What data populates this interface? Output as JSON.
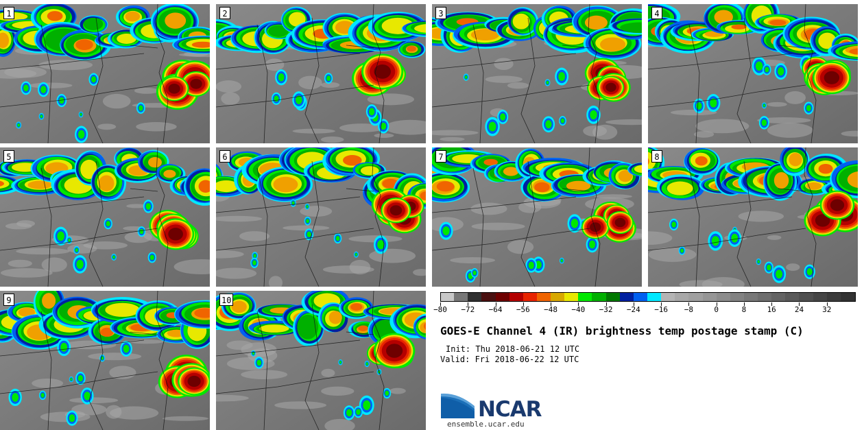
{
  "panels": [
    {
      "label": "1"
    },
    {
      "label": "2"
    },
    {
      "label": "3"
    },
    {
      "label": "4"
    },
    {
      "label": "5"
    },
    {
      "label": "6"
    },
    {
      "label": "7"
    },
    {
      "label": "8"
    },
    {
      "label": "9"
    },
    {
      "label": "10"
    }
  ],
  "colorbar": {
    "min": -80,
    "max": 40,
    "step": 4,
    "tick_labels": [
      "−80",
      "−72",
      "−64",
      "−56",
      "−48",
      "−40",
      "−32",
      "−24",
      "−16",
      "−8",
      "0",
      "8",
      "16",
      "24",
      "32"
    ],
    "tick_values": [
      -80,
      -72,
      -64,
      -56,
      -48,
      -40,
      -32,
      -24,
      -16,
      -8,
      0,
      8,
      16,
      24,
      32
    ],
    "colors": [
      "#c8c8c8",
      "#787878",
      "#303030",
      "#4a1010",
      "#6e0000",
      "#b40000",
      "#e82400",
      "#f06400",
      "#d8a800",
      "#e8e800",
      "#00e800",
      "#00b000",
      "#007800",
      "#0020a0",
      "#0060f0",
      "#00e8ff",
      "#b4b4b4",
      "#a8a8a8",
      "#a0a0a0",
      "#969696",
      "#8c8c8c",
      "#828282",
      "#787878",
      "#6e6e6e",
      "#646464",
      "#5a5a5a",
      "#505050",
      "#464646",
      "#3c3c3c",
      "#323232"
    ]
  },
  "title": "GOES-E Channel 4 (IR) brightness temp postage stamp (C)",
  "init": "Init: Thu 2018-06-21 12 UTC",
  "valid": "Valid: Fri 2018-06-22 12 UTC",
  "logo": {
    "text": "NCAR"
  },
  "url": "ensemble.ucar.edu"
}
